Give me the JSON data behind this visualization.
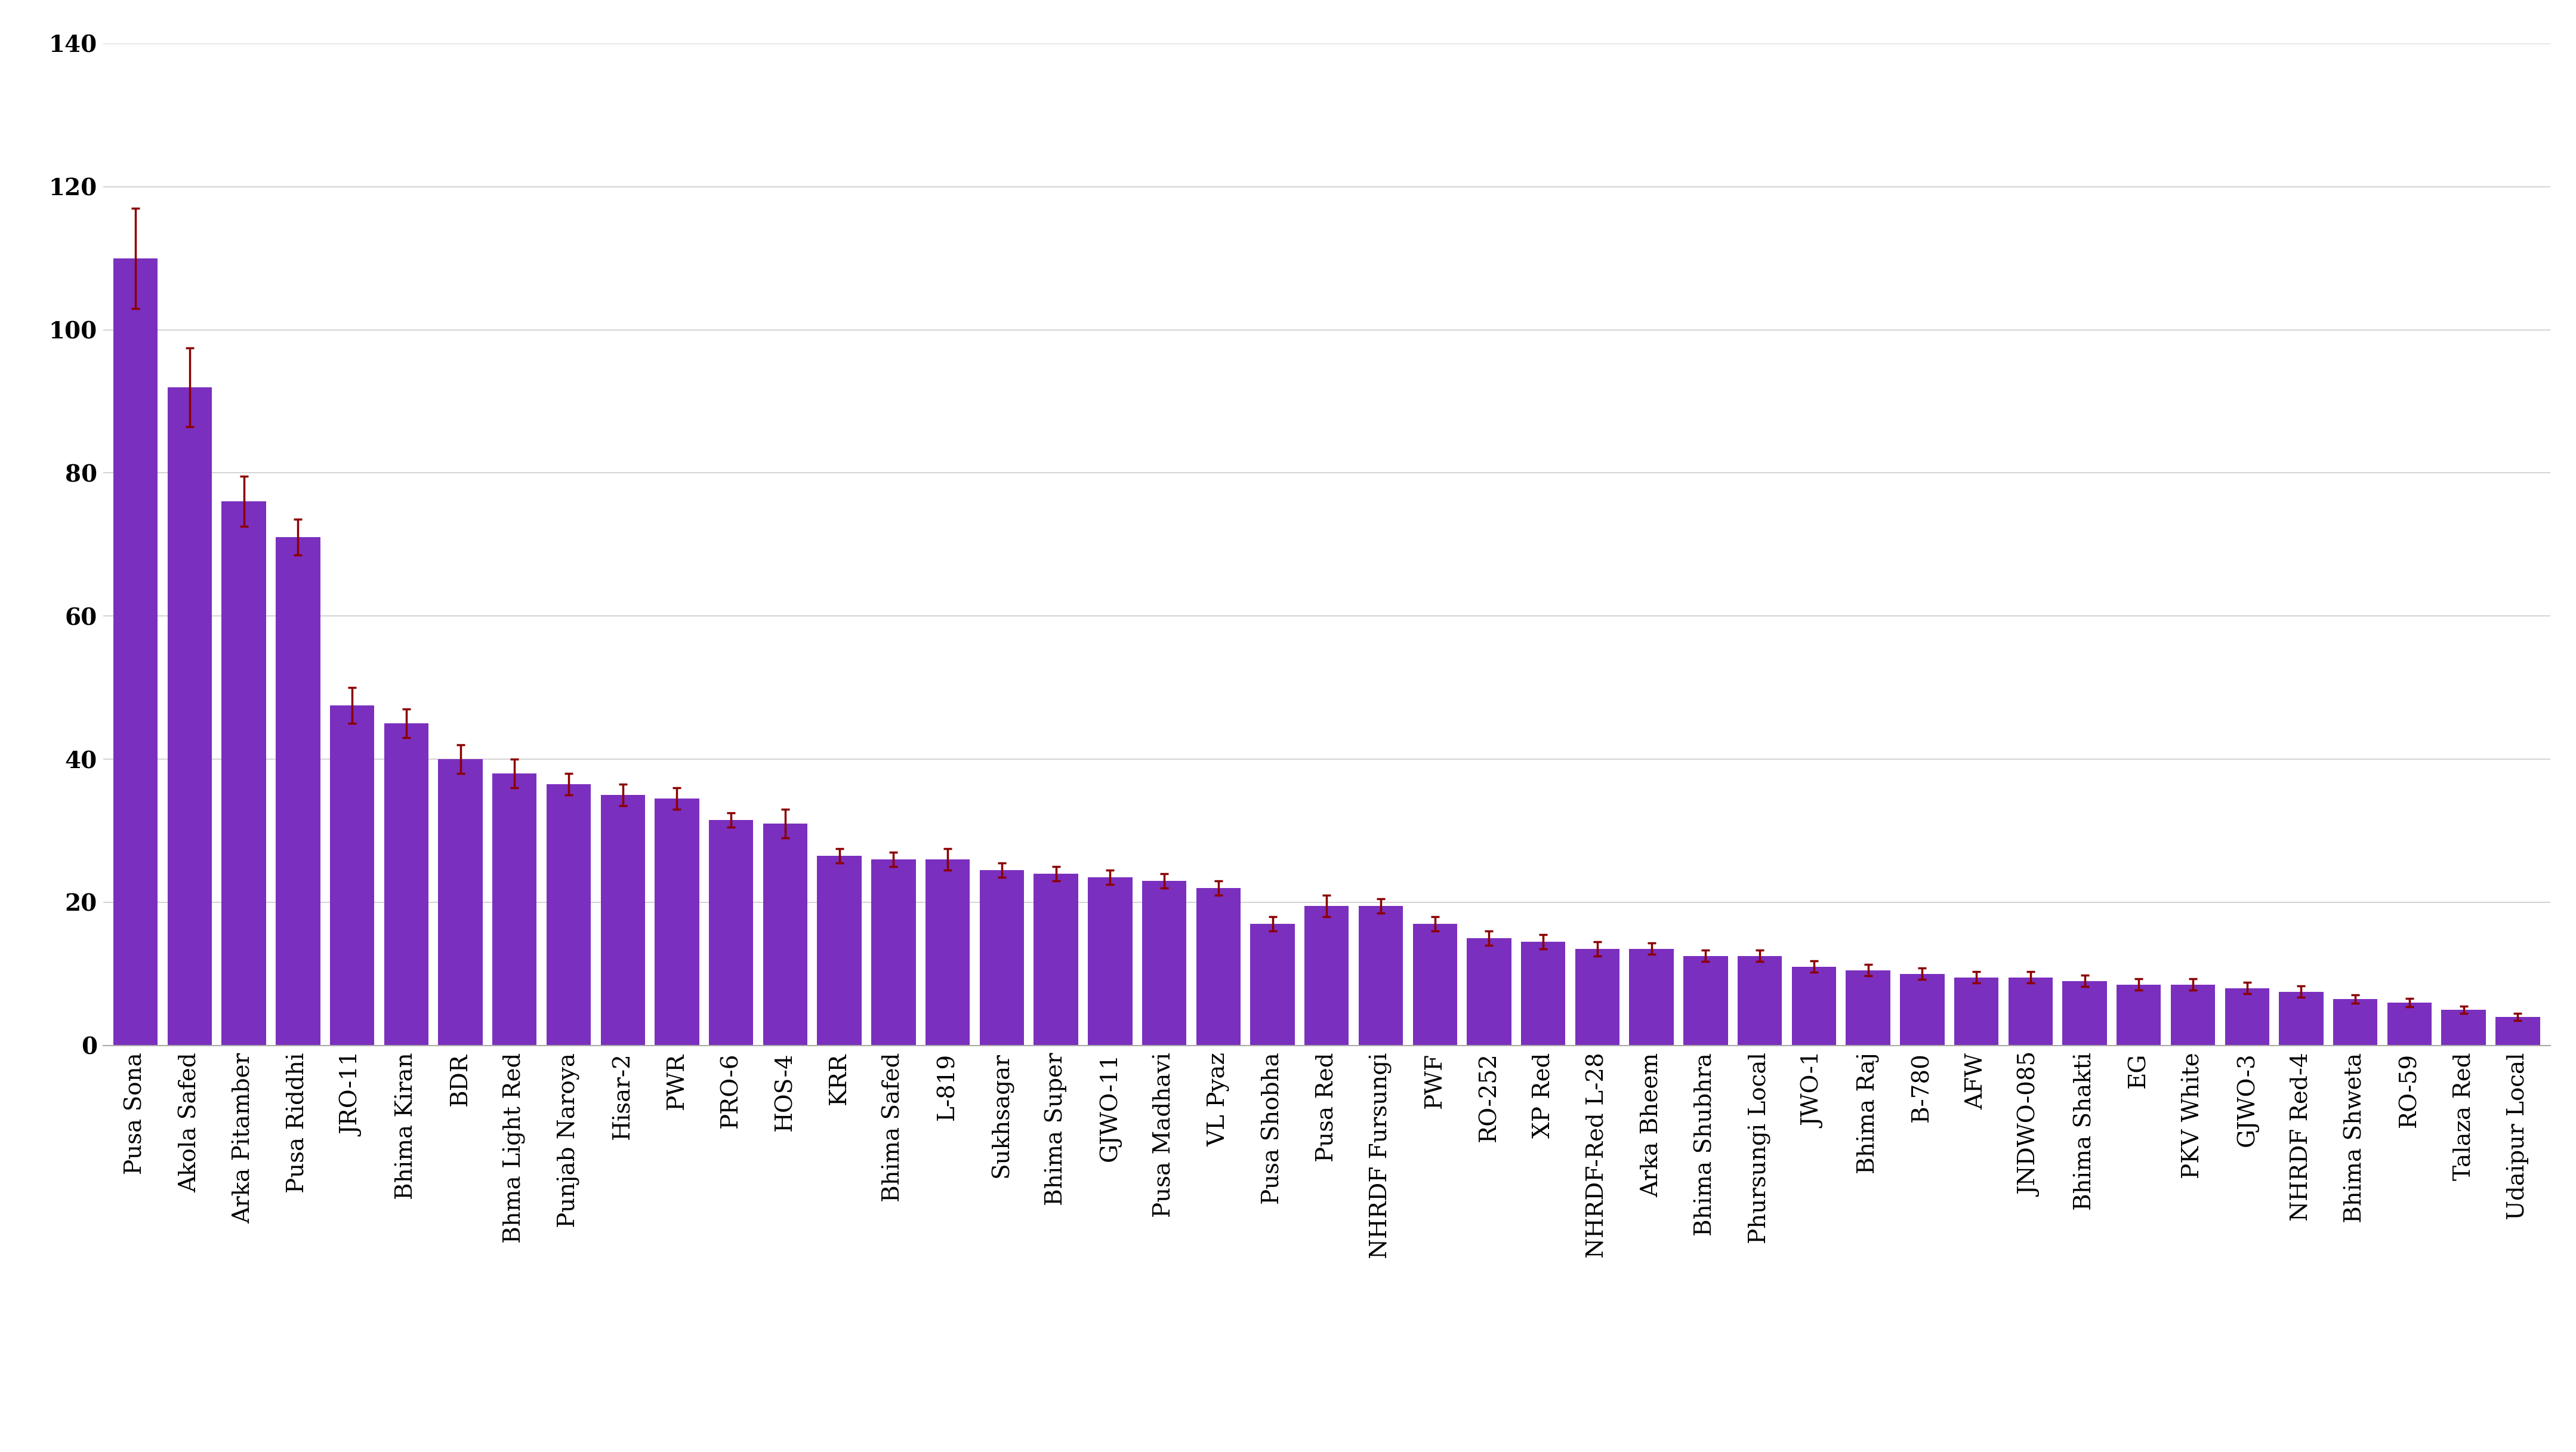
{
  "categories": [
    "Pusa Sona",
    "Akola Safed",
    "Arka Pitamber",
    "Pusa Riddhi",
    "JRO-11",
    "Bhima Kiran",
    "BDR",
    "Bhma Light Red",
    "Punjab Naroya",
    "Hisar-2",
    "PWR",
    "PRO-6",
    "HOS-4",
    "KRR",
    "Bhima Safed",
    "L-819",
    "Sukhsagar",
    "Bhima Super",
    "GJWO-11",
    "Pusa Madhavi",
    "VL Pyaz",
    "Pusa Shobha",
    "Pusa Red",
    "NHRDF Fursungi",
    "PWF",
    "RO-252",
    "XP Red",
    "NHRDF-Red L-28",
    "Arka Bheem",
    "Bhima Shubhra",
    "Phursungi Local",
    "JWO-1",
    "Bhima Raj",
    "B-780",
    "AFW",
    "JNDWO-085",
    "Bhima Shakti",
    "EG",
    "PKV White",
    "GJWO-3",
    "NHRDF Red-4",
    "Bhima Shweta",
    "RO-59",
    "Talaza Red",
    "Udaipur Local"
  ],
  "values": [
    110.0,
    92.0,
    76.0,
    71.0,
    47.5,
    45.0,
    40.0,
    38.0,
    36.5,
    35.0,
    34.5,
    31.5,
    31.0,
    26.5,
    26.0,
    26.0,
    24.5,
    24.0,
    23.5,
    23.0,
    22.0,
    17.0,
    19.5,
    19.5,
    17.0,
    15.0,
    14.5,
    13.5,
    13.5,
    12.5,
    12.5,
    11.0,
    10.5,
    10.0,
    9.5,
    9.5,
    9.0,
    8.5,
    8.5,
    8.0,
    7.5,
    6.5,
    6.0,
    5.0,
    4.0
  ],
  "errors": [
    7.0,
    5.5,
    3.5,
    2.5,
    2.5,
    2.0,
    2.0,
    2.0,
    1.5,
    1.5,
    1.5,
    1.0,
    2.0,
    1.0,
    1.0,
    1.5,
    1.0,
    1.0,
    1.0,
    1.0,
    1.0,
    1.0,
    1.5,
    1.0,
    1.0,
    1.0,
    1.0,
    1.0,
    0.8,
    0.8,
    0.8,
    0.8,
    0.8,
    0.8,
    0.8,
    0.8,
    0.8,
    0.8,
    0.8,
    0.8,
    0.8,
    0.6,
    0.6,
    0.5,
    0.5
  ],
  "bar_color": "#7B2FBE",
  "error_color": "#8B0000",
  "ylim": [
    0,
    140
  ],
  "yticks": [
    0,
    20,
    40,
    60,
    80,
    100,
    120,
    140
  ],
  "background_color": "#ffffff",
  "grid_color": "#cccccc",
  "bar_width": 0.82,
  "tick_fontsize": 28,
  "ytick_fontsize": 28
}
